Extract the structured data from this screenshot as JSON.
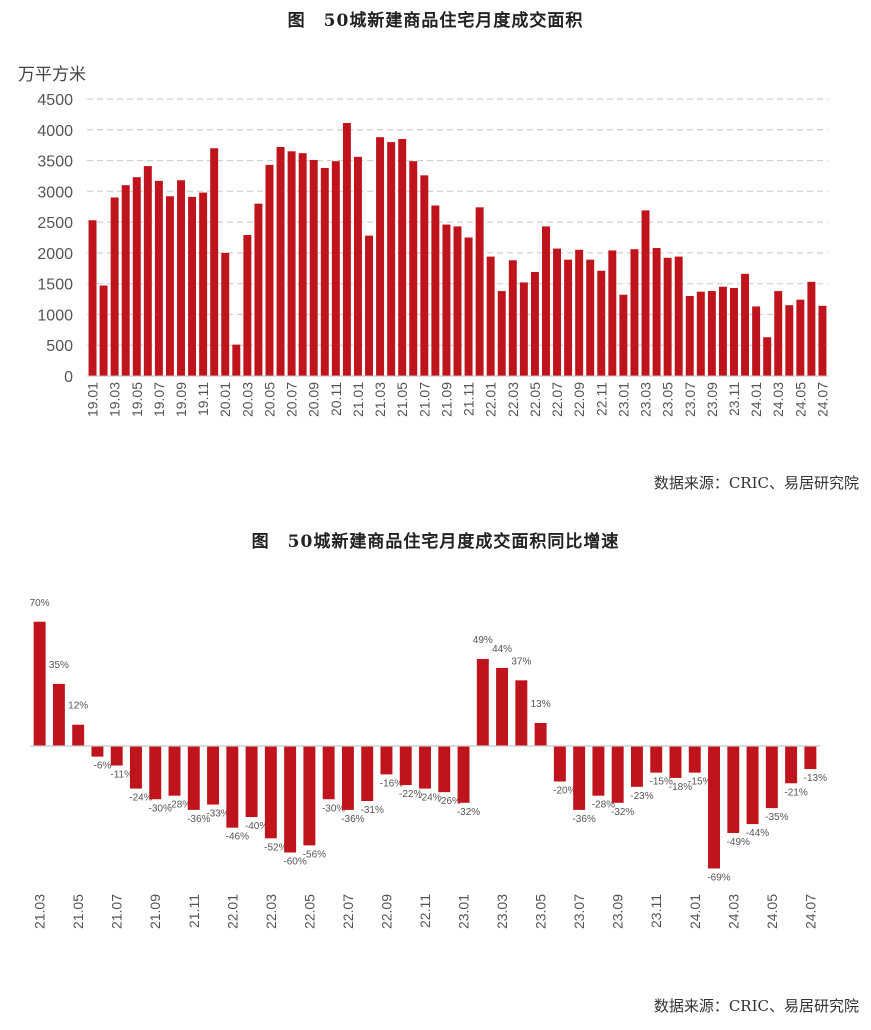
{
  "chart_data": [
    {
      "type": "bar",
      "title": "图　50城新建商品住宅月度成交面积",
      "ylabel": "万平方米",
      "ylim": [
        0,
        4500
      ],
      "yticks": [
        0,
        500,
        1000,
        1500,
        2000,
        2500,
        3000,
        3500,
        4000,
        4500
      ],
      "grid": "horizontal-dashed",
      "color": "#c0141c",
      "source": "数据来源：CRIC、易居研究院",
      "categories": [
        "19.01",
        "19.02",
        "19.03",
        "19.04",
        "19.05",
        "19.06",
        "19.07",
        "19.08",
        "19.09",
        "19.10",
        "19.11",
        "19.12",
        "20.01",
        "20.02",
        "20.03",
        "20.04",
        "20.05",
        "20.06",
        "20.07",
        "20.08",
        "20.09",
        "20.10",
        "20.11",
        "20.12",
        "21.01",
        "21.02",
        "21.03",
        "21.04",
        "21.05",
        "21.06",
        "21.07",
        "21.08",
        "21.09",
        "21.10",
        "21.11",
        "21.12",
        "22.01",
        "22.02",
        "22.03",
        "22.04",
        "22.05",
        "22.06",
        "22.07",
        "22.08",
        "22.09",
        "22.10",
        "22.11",
        "22.12",
        "23.01",
        "23.02",
        "23.03",
        "23.04",
        "23.05",
        "23.06",
        "23.07",
        "23.08",
        "23.09",
        "23.10",
        "23.11",
        "23.12",
        "24.01",
        "24.02",
        "24.03",
        "24.04",
        "24.05",
        "24.06",
        "24.07"
      ],
      "xtick_labels": [
        "19.01",
        "19.03",
        "19.05",
        "19.07",
        "19.09",
        "19.11",
        "20.01",
        "20.03",
        "20.05",
        "20.07",
        "20.09",
        "20.11",
        "21.01",
        "21.03",
        "21.05",
        "21.07",
        "21.09",
        "21.11",
        "22.01",
        "22.03",
        "22.05",
        "22.07",
        "22.09",
        "22.11",
        "23.01",
        "23.03",
        "23.05",
        "23.07",
        "23.09",
        "23.11",
        "24.01",
        "24.03",
        "24.05",
        "24.07"
      ],
      "values": [
        2530,
        1470,
        2900,
        3100,
        3230,
        3410,
        3170,
        2920,
        3180,
        2910,
        2980,
        3700,
        2000,
        510,
        2290,
        2800,
        3430,
        3720,
        3650,
        3620,
        3510,
        3380,
        3490,
        4110,
        3560,
        2280,
        3880,
        3800,
        3850,
        3490,
        3260,
        2770,
        2460,
        2430,
        2250,
        2740,
        1940,
        1380,
        1880,
        1520,
        1690,
        2430,
        2070,
        1890,
        2050,
        1890,
        1710,
        2040,
        1320,
        2060,
        2690,
        2080,
        1920,
        1940,
        1300,
        1370,
        1380,
        1450,
        1430,
        1660,
        1130,
        630,
        1380,
        1150,
        1240,
        1530,
        1140
      ]
    },
    {
      "type": "bar",
      "title": "图　50城新建商品住宅月度成交面积同比增速",
      "color": "#c0141c",
      "source": "数据来源：CRIC、易居研究院",
      "value_suffix": "%",
      "categories": [
        "21.03",
        "21.04",
        "21.05",
        "21.06",
        "21.07",
        "21.08",
        "21.09",
        "21.10",
        "21.11",
        "21.12",
        "22.01",
        "22.02",
        "22.03",
        "22.04",
        "22.05",
        "22.06",
        "22.07",
        "22.08",
        "22.09",
        "22.10",
        "22.11",
        "22.12",
        "23.01",
        "23.02",
        "23.03",
        "23.04",
        "23.05",
        "23.06",
        "23.07",
        "23.08",
        "23.09",
        "23.10",
        "23.11",
        "23.12",
        "24.01",
        "24.02",
        "24.03",
        "24.04",
        "24.05",
        "24.06",
        "24.07"
      ],
      "xtick_labels": [
        "21.03",
        "21.05",
        "21.07",
        "21.09",
        "21.11",
        "22.01",
        "22.03",
        "22.05",
        "22.07",
        "22.09",
        "22.11",
        "23.01",
        "23.03",
        "23.05",
        "23.07",
        "23.09",
        "23.11",
        "24.01",
        "24.03",
        "24.05",
        "24.07"
      ],
      "values": [
        70,
        35,
        12,
        -6,
        -11,
        -24,
        -30,
        -28,
        -36,
        -33,
        -46,
        -40,
        -52,
        -60,
        -56,
        -30,
        -36,
        -31,
        -16,
        -22,
        -24,
        -26,
        -32,
        49,
        44,
        37,
        13,
        -20,
        -36,
        -28,
        -32,
        -23,
        -15,
        -18,
        -15,
        -69,
        -49,
        -44,
        -35,
        -21,
        -13
      ],
      "labels": [
        "70%",
        "35%",
        "12%",
        "-6%",
        "-11%",
        "-24%",
        "-30%",
        "-28%",
        "-36%",
        "-33%",
        "-46%",
        "-40%",
        "-52%",
        "-60%",
        "-56%",
        "-30%",
        "-36%",
        "-31%",
        "-16%",
        "-22%",
        "-24%",
        "-26%",
        "-32%",
        "49%",
        "44%",
        "37%",
        "13%",
        "-20%",
        "-36%",
        "-28%",
        "-32%",
        "-23%",
        "-15%",
        "-18%",
        "-15%",
        "-69%",
        "-49%",
        "-44%",
        "-35%",
        "-21%",
        "-13%"
      ]
    }
  ]
}
